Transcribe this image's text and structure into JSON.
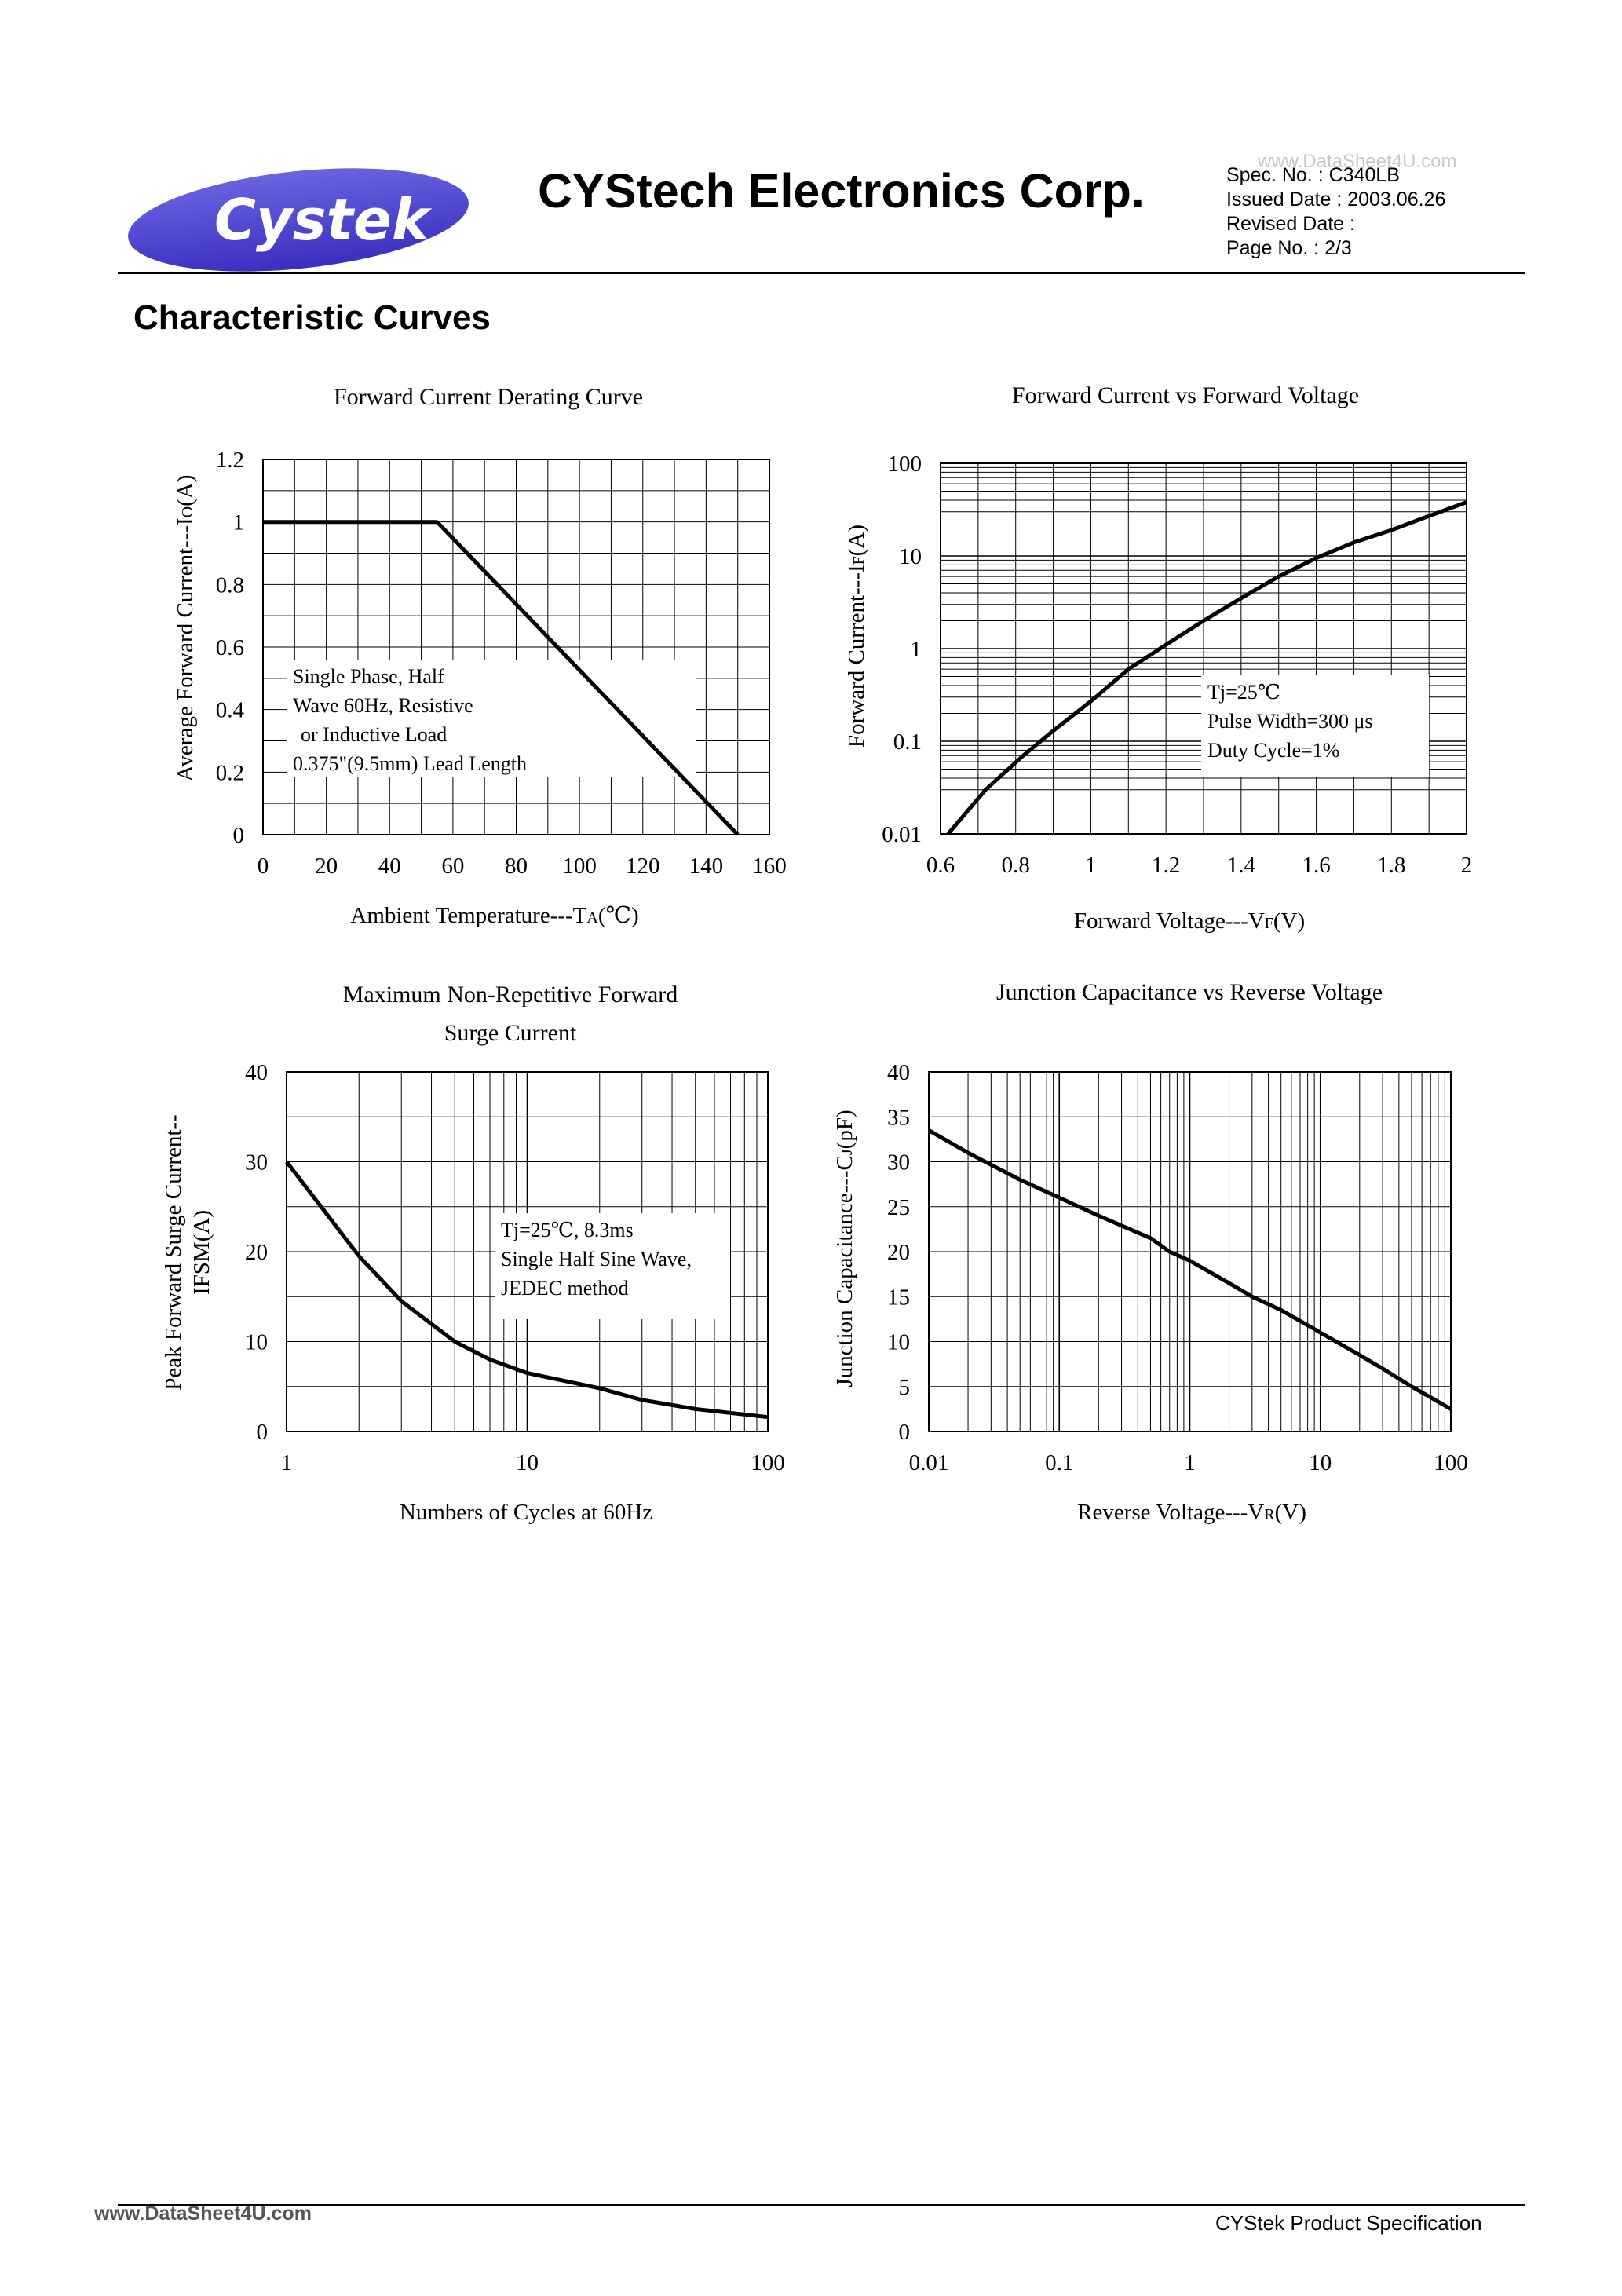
{
  "header": {
    "logo_text": "Cystek",
    "company": "CYStech Electronics Corp.",
    "watermark_top": "www.DataSheet4U.com",
    "spec_no": "Spec. No. : C340LB",
    "issued_date": "Issued Date : 2003.06.26",
    "revised_date": "Revised Date :",
    "page_no": "Page No. : 2/3"
  },
  "section_title": "Characteristic Curves",
  "footer": {
    "left_text": "www.DataSheet4U.com",
    "right_text": "CYStek Product Specification"
  },
  "chart_data": [
    {
      "type": "line",
      "title": "Forward Current Derating Curve",
      "xlabel": "Ambient Temperature---T",
      "xlabel_sub": "A",
      "xlabel_unit": "(℃)",
      "ylabel": "Average Forward Current---I",
      "ylabel_sub": "O",
      "ylabel_unit": "(A)",
      "xlim": [
        0,
        160
      ],
      "ylim": [
        0,
        1.2
      ],
      "x_ticks": [
        "0",
        "20",
        "40",
        "60",
        "80",
        "100",
        "120",
        "140",
        "160"
      ],
      "y_ticks": [
        "0",
        "0.2",
        "0.4",
        "0.6",
        "0.8",
        "1",
        "1.2"
      ],
      "x": [
        0,
        55,
        150
      ],
      "y": [
        1.0,
        1.0,
        0.0
      ],
      "annotation": [
        "Single Phase, Half",
        "Wave 60Hz, Resistive",
        "or Inductive Load",
        "0.375\"(9.5mm) Lead Length"
      ]
    },
    {
      "type": "line",
      "title": "Forward Current vs Forward Voltage",
      "xlabel": "Forward Voltage---V",
      "xlabel_sub": "F",
      "xlabel_unit": "(V)",
      "ylabel": "Forward Current---I",
      "ylabel_sub": "F",
      "ylabel_unit": "(A)",
      "xlim": [
        0.6,
        2
      ],
      "ylim": [
        0.01,
        100
      ],
      "y_scale": "log",
      "x_ticks": [
        "0.6",
        "0.8",
        "1",
        "1.2",
        "1.4",
        "1.6",
        "1.8",
        "2"
      ],
      "y_ticks": [
        "0.01",
        "0.1",
        "1",
        "10",
        "100"
      ],
      "x": [
        0.62,
        0.72,
        0.82,
        0.9,
        1.0,
        1.1,
        1.2,
        1.3,
        1.4,
        1.5,
        1.6,
        1.7,
        1.8,
        1.9,
        2.0
      ],
      "y": [
        0.01,
        0.03,
        0.07,
        0.13,
        0.27,
        0.6,
        1.1,
        2.0,
        3.5,
        6.0,
        9.5,
        14,
        19,
        27,
        38
      ],
      "annotation": [
        "Tj=25℃",
        "Pulse Width=300 μs",
        "Duty Cycle=1%"
      ]
    },
    {
      "type": "line",
      "title": "Maximum Non-Repetitive Forward Surge Current",
      "title_lines": [
        "Maximum Non-Repetitive Forward",
        "Surge Current"
      ],
      "xlabel": "Numbers of Cycles at 60Hz",
      "ylabel_lines": [
        "Peak Forward Surge Current--",
        "IFSM(A)"
      ],
      "xlim": [
        1,
        100
      ],
      "x_scale": "log",
      "ylim": [
        0,
        40
      ],
      "x_ticks": [
        "1",
        "10",
        "100"
      ],
      "y_ticks": [
        "0",
        "10",
        "20",
        "30",
        "40"
      ],
      "x": [
        1,
        2,
        3,
        5,
        7,
        10,
        20,
        30,
        50,
        100
      ],
      "y": [
        30,
        19.5,
        14.5,
        10,
        8.0,
        6.5,
        4.8,
        3.5,
        2.5,
        1.6
      ],
      "annotation": [
        "Tj=25℃, 8.3ms",
        "Single Half  Sine Wave,",
        "JEDEC method"
      ]
    },
    {
      "type": "line",
      "title": "Junction Capacitance vs Reverse Voltage",
      "xlabel": "Reverse Voltage---V",
      "xlabel_sub": "R",
      "xlabel_unit": "(V)",
      "ylabel": "Junction Capacitance---C",
      "ylabel_sub": "J",
      "ylabel_unit": "(pF)",
      "xlim": [
        0.01,
        100
      ],
      "x_scale": "log",
      "ylim": [
        0,
        40
      ],
      "x_ticks": [
        "0.01",
        "0.1",
        "1",
        "10",
        "100"
      ],
      "y_ticks": [
        "0",
        "5",
        "10",
        "15",
        "20",
        "25",
        "30",
        "35",
        "40"
      ],
      "x": [
        0.01,
        0.02,
        0.05,
        0.1,
        0.2,
        0.5,
        0.7,
        1,
        2,
        3,
        5,
        10,
        20,
        30,
        50,
        100
      ],
      "y": [
        33.5,
        31,
        28,
        26,
        24,
        21.5,
        20,
        19,
        16.5,
        15,
        13.5,
        11,
        8.5,
        7,
        5,
        2.5
      ]
    }
  ]
}
